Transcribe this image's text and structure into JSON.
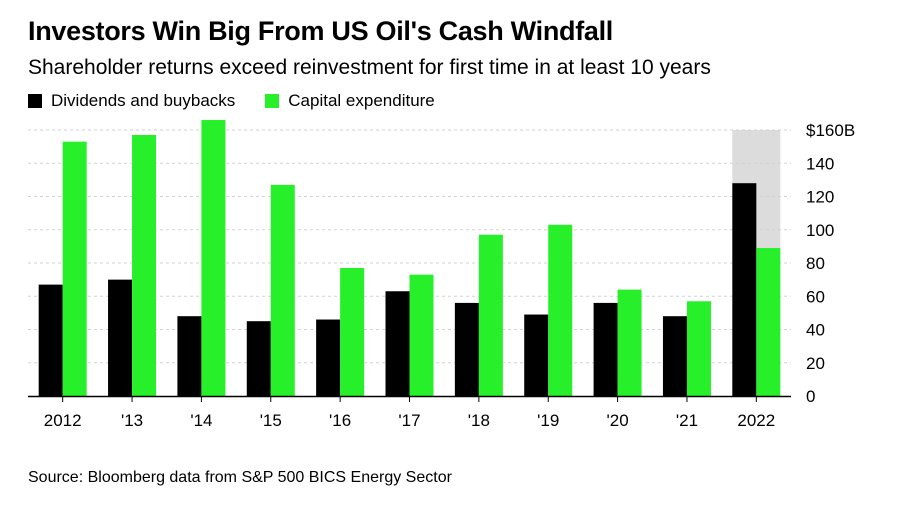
{
  "title": "Investors Win Big From US Oil's Cash Windfall",
  "subtitle": "Shareholder returns exceed reinvestment for first time in at least 10 years",
  "source": "Source: Bloomberg data from S&P 500 BICS Energy Sector",
  "colors": {
    "dividends": "#000000",
    "capex": "#27f02a",
    "highlight": "#dcdcdc",
    "grid": "#d2d2d2",
    "axis": "#000000"
  },
  "chart_data": {
    "type": "bar",
    "categories": [
      "2012",
      "'13",
      "'14",
      "'15",
      "'16",
      "'17",
      "'18",
      "'19",
      "'20",
      "'21",
      "2022"
    ],
    "series": [
      {
        "name": "Dividends and buybacks",
        "values": [
          67,
          70,
          48,
          45,
          46,
          63,
          56,
          49,
          56,
          48,
          128
        ]
      },
      {
        "name": "Capital expenditure",
        "values": [
          153,
          157,
          166,
          127,
          77,
          73,
          97,
          103,
          64,
          57,
          89
        ]
      }
    ],
    "ylim": [
      0,
      160
    ],
    "yticks": [
      {
        "value": 0,
        "label": "0"
      },
      {
        "value": 20,
        "label": "20"
      },
      {
        "value": 40,
        "label": "40"
      },
      {
        "value": 60,
        "label": "60"
      },
      {
        "value": 80,
        "label": "80"
      },
      {
        "value": 100,
        "label": "100"
      },
      {
        "value": 120,
        "label": "120"
      },
      {
        "value": 140,
        "label": "140"
      },
      {
        "value": 160,
        "label": "$160B"
      }
    ],
    "highlight_category": "2022",
    "grid": true,
    "y_axis_side": "right",
    "legend_position": "top-left"
  }
}
